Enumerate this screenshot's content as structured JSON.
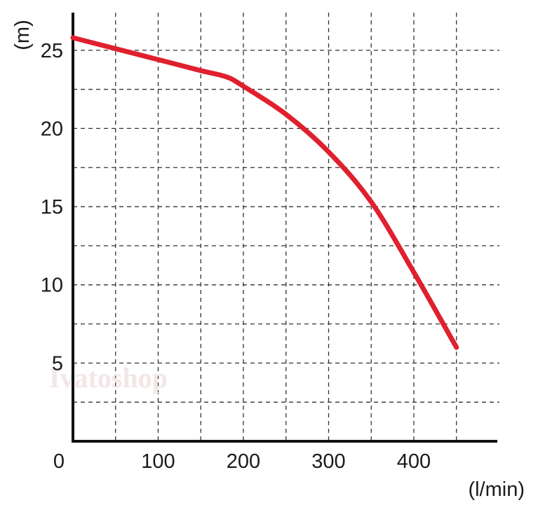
{
  "chart_data": {
    "type": "line",
    "title": "",
    "xlabel": "(l/min)",
    "ylabel": "(m)",
    "origin_label": "0",
    "watermark": "Ivatoshop",
    "xlim": [
      0,
      490
    ],
    "ylim": [
      0,
      27
    ],
    "x_ticks": [
      100,
      200,
      300,
      400
    ],
    "y_ticks": [
      5,
      10,
      15,
      20,
      25
    ],
    "x_grid": [
      50,
      100,
      150,
      200,
      250,
      300,
      350,
      400,
      450
    ],
    "y_grid": [
      2.5,
      5,
      7.5,
      10,
      12.5,
      15,
      17.5,
      20,
      22.5,
      25
    ],
    "grid": true,
    "line_color": "#e0202e",
    "series": [
      {
        "x": [
          0,
          50,
          100,
          150,
          180,
          200,
          250,
          300,
          350,
          400,
          450
        ],
        "y": [
          25.8,
          25.1,
          24.4,
          23.7,
          23.3,
          22.7,
          20.9,
          18.5,
          15.3,
          10.8,
          6.0
        ]
      }
    ]
  }
}
